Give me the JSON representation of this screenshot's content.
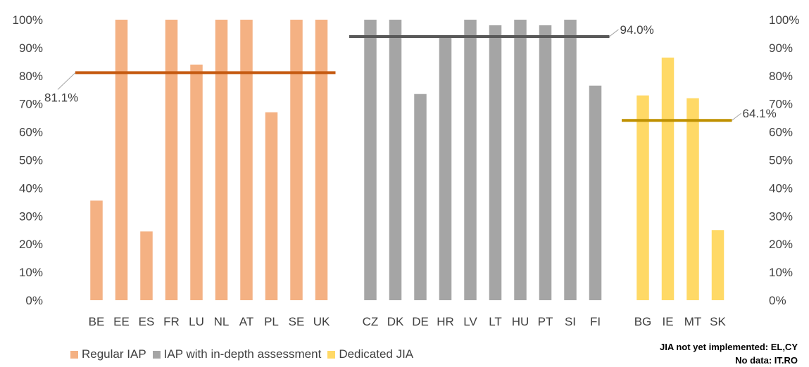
{
  "chart_data": {
    "type": "bar",
    "categories": [
      "BE",
      "EE",
      "ES",
      "FR",
      "LU",
      "NL",
      "AT",
      "PL",
      "SE",
      "UK",
      "CZ",
      "DK",
      "DE",
      "HR",
      "LV",
      "LT",
      "HU",
      "PT",
      "SI",
      "FI",
      "BG",
      "IE",
      "MT",
      "SK"
    ],
    "y_ticks": [
      "0%",
      "10%",
      "20%",
      "30%",
      "40%",
      "50%",
      "60%",
      "70%",
      "80%",
      "90%",
      "100%"
    ],
    "ylim": [
      0,
      100
    ],
    "grid": false,
    "legend_position": "bottom-left",
    "groups": [
      {
        "name": "Regular IAP",
        "color": "#F4B183",
        "categories": [
          "BE",
          "EE",
          "ES",
          "FR",
          "LU",
          "NL",
          "AT",
          "PL",
          "SE",
          "UK"
        ],
        "values": [
          35.5,
          100,
          24.5,
          100,
          84,
          100,
          100,
          67,
          100,
          100
        ],
        "average": 81.1,
        "average_label": "81.1%",
        "average_color": "#C55A11"
      },
      {
        "name": "IAP with in-depth assessment",
        "color": "#A5A5A5",
        "categories": [
          "CZ",
          "DK",
          "DE",
          "HR",
          "LV",
          "LT",
          "HU",
          "PT",
          "SI",
          "FI"
        ],
        "values": [
          100,
          100,
          73.5,
          94.5,
          100,
          98,
          100,
          98,
          100,
          76.5
        ],
        "average": 94.0,
        "average_label": "94.0%",
        "average_color": "#595959"
      },
      {
        "name": "Dedicated JIA",
        "color": "#FFD966",
        "categories": [
          "BG",
          "IE",
          "MT",
          "SK"
        ],
        "values": [
          73,
          86.5,
          72,
          25
        ],
        "average": 64.1,
        "average_label": "64.1%",
        "average_color": "#BF9000"
      }
    ],
    "notes": [
      "JIA not yet implemented: EL,CY",
      "No data: IT.RO"
    ]
  }
}
